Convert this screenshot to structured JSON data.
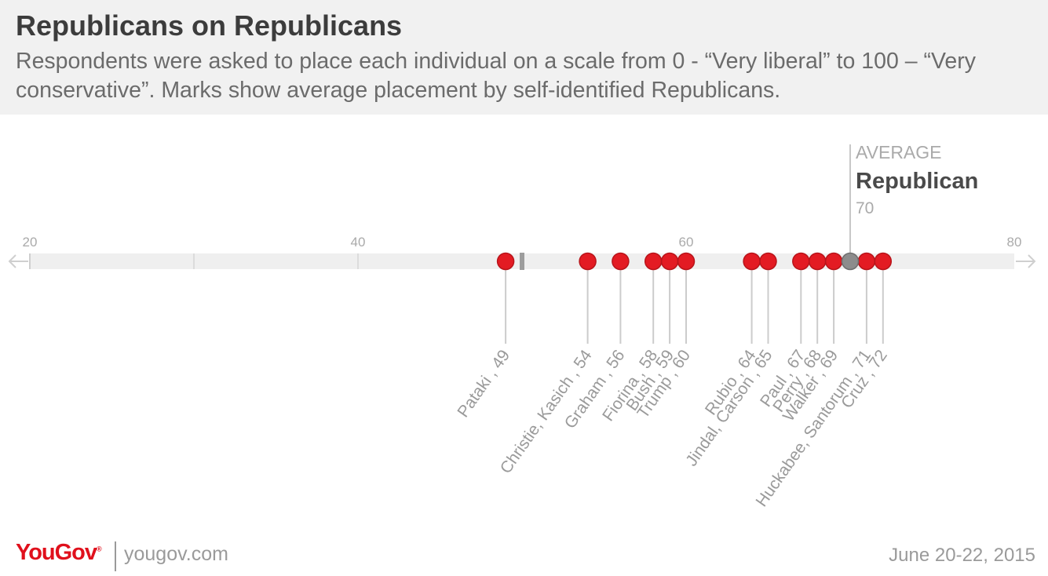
{
  "header": {
    "title": "Republicans on Republicans",
    "subtitle": "Respondents were asked to place each individual on a scale from 0 - “Very liberal” to 100 – “Very conservative”.  Marks show average placement by self-identified Republicans."
  },
  "footer": {
    "logo": "YouGov",
    "logo_mark": "®",
    "site": "yougov.com",
    "date": "June 20-22, 2015"
  },
  "colors": {
    "point": "#e31b23",
    "point_border": "#b8141a",
    "average_point": "#8c8c8c",
    "track": "#efefef",
    "text_muted": "#aaaaaa",
    "text_dark": "#4a4a4a"
  },
  "chart_data": {
    "type": "dot-scale",
    "xlim": [
      20,
      80
    ],
    "ticks": [
      20,
      40,
      60,
      80
    ],
    "minor_ticks": [
      30,
      50
    ],
    "average": {
      "label_top": "AVERAGE",
      "label_main": "Republican",
      "value": 70,
      "value_label": "70"
    },
    "marker": {
      "value": 50
    },
    "points": [
      {
        "label": "Pataki , 49",
        "value": 49
      },
      {
        "label": "Christie, Kasich , 54",
        "value": 54
      },
      {
        "label": "Graham , 56",
        "value": 56
      },
      {
        "label": "Fiorina , 58",
        "value": 58
      },
      {
        "label": "Bush , 59",
        "value": 59
      },
      {
        "label": "Trump , 60",
        "value": 60
      },
      {
        "label": "Rubio , 64",
        "value": 64
      },
      {
        "label": "Jindal, Carson , 65",
        "value": 65
      },
      {
        "label": "Paul , 67",
        "value": 67
      },
      {
        "label": "Perry , 68",
        "value": 68
      },
      {
        "label": "Walker , 69",
        "value": 69
      },
      {
        "label": "Huckabee, Santorum , 71",
        "value": 71
      },
      {
        "label": "Cruz , 72",
        "value": 72
      }
    ]
  }
}
